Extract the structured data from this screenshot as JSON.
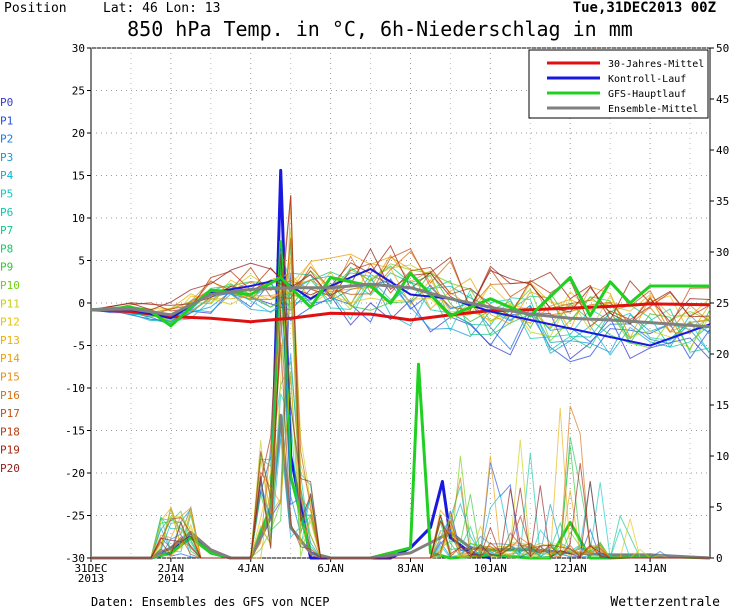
{
  "header": {
    "position_label": "Position",
    "lat_lon": "Lat: 46 Lon: 13",
    "run": "Tue,31DEC2013 00Z",
    "title": "850 hPa Temp. in °C, 6h-Niederschlag in mm"
  },
  "footer": {
    "source": "Daten: Ensembles des GFS von NCEP",
    "brand": "Wetterzentrale"
  },
  "members": [
    {
      "label": "P0",
      "color": "#3a3ad0"
    },
    {
      "label": "P1",
      "color": "#2250e0"
    },
    {
      "label": "P2",
      "color": "#1a7ae0"
    },
    {
      "label": "P3",
      "color": "#1898d8"
    },
    {
      "label": "P4",
      "color": "#10b0d0"
    },
    {
      "label": "P5",
      "color": "#10c8c8"
    },
    {
      "label": "P6",
      "color": "#10c8a8"
    },
    {
      "label": "P7",
      "color": "#10c888"
    },
    {
      "label": "P8",
      "color": "#18c860"
    },
    {
      "label": "P9",
      "color": "#30c830"
    },
    {
      "label": "P10",
      "color": "#70d010"
    },
    {
      "label": "P11",
      "color": "#c8d010"
    },
    {
      "label": "P12",
      "color": "#e8c010"
    },
    {
      "label": "P13",
      "color": "#e8b010"
    },
    {
      "label": "P14",
      "color": "#e8a010"
    },
    {
      "label": "P15",
      "color": "#e89010"
    },
    {
      "label": "P16",
      "color": "#d87010"
    },
    {
      "label": "P17",
      "color": "#c85010"
    },
    {
      "label": "P18",
      "color": "#b83a10"
    },
    {
      "label": "P19",
      "color": "#a02810"
    },
    {
      "label": "P20",
      "color": "#902020"
    }
  ],
  "chart_data": {
    "type": "line",
    "title": "850 hPa Temp. in °C, 6h-Niederschlag in mm",
    "x_ticks": [
      "31DEC\n2013",
      "2JAN\n2014",
      "4JAN",
      "6JAN",
      "8JAN",
      "10JAN",
      "12JAN",
      "14JAN"
    ],
    "x_range_days": [
      0,
      15.5
    ],
    "y_left_label": "°C",
    "y_left_range": [
      -30,
      30
    ],
    "y_left_ticks": [
      30,
      25,
      20,
      15,
      10,
      5,
      0,
      -5,
      -10,
      -15,
      -20,
      -25,
      -30
    ],
    "y_right_label": "mm",
    "y_right_range": [
      0,
      50
    ],
    "y_right_ticks": [
      50,
      45,
      40,
      35,
      30,
      25,
      20,
      15,
      10,
      5,
      0
    ],
    "grid": true,
    "legend_position": "top-right",
    "legend": [
      {
        "name": "30-Jahres-Mittel",
        "color": "#e01010"
      },
      {
        "name": "Kontroll-Lauf",
        "color": "#1818e0"
      },
      {
        "name": "GFS-Hauptlauf",
        "color": "#20d020"
      },
      {
        "name": "Ensemble-Mittel",
        "color": "#808080"
      }
    ],
    "temperature_series": [
      {
        "name": "30-Jahres-Mittel",
        "color": "#e01010",
        "width": 3,
        "x": [
          0,
          1,
          2,
          3,
          4,
          5,
          6,
          7,
          8,
          9,
          10,
          11,
          12,
          13,
          14,
          15.5
        ],
        "y": [
          -0.8,
          -1,
          -1.6,
          -1.8,
          -2.2,
          -1.8,
          -1.2,
          -1.3,
          -2,
          -1.4,
          -0.9,
          -0.8,
          -0.6,
          -0.4,
          -0.1,
          -0.2
        ]
      },
      {
        "name": "Kontroll-Lauf",
        "color": "#1818e0",
        "width": 2,
        "x": [
          0,
          1,
          2,
          3,
          4,
          4.75,
          5.5,
          6,
          7,
          8,
          9,
          10,
          11,
          12,
          13,
          14,
          15.5
        ],
        "y": [
          -0.8,
          -0.8,
          -1.8,
          1.2,
          2,
          2.8,
          0.5,
          2,
          4,
          1,
          0.5,
          -1,
          -2,
          -3,
          -4,
          -5,
          -2.5
        ]
      },
      {
        "name": "GFS-Hauptlauf",
        "color": "#20d020",
        "width": 3,
        "x": [
          0,
          1,
          1.5,
          2,
          2.5,
          3,
          4,
          4.75,
          5.5,
          6,
          7,
          7.5,
          8,
          9,
          10,
          11,
          12,
          12.5,
          13,
          13.5,
          14,
          15.5
        ],
        "y": [
          -0.8,
          -0.5,
          -1,
          -2.7,
          -0.5,
          1.5,
          1,
          3,
          -0.5,
          3,
          2,
          0,
          3.5,
          -1.5,
          0.5,
          -1.5,
          3,
          -1.5,
          2.5,
          0,
          2,
          2
        ]
      },
      {
        "name": "Ensemble-Mittel",
        "color": "#808080",
        "width": 3,
        "x": [
          0,
          1,
          2,
          3,
          4,
          5,
          6,
          7,
          8,
          9,
          10,
          11,
          12,
          13,
          14,
          15.5
        ],
        "y": [
          -0.8,
          -0.7,
          -1.4,
          1,
          1.6,
          1.8,
          1.8,
          2.2,
          1.8,
          0.5,
          -0.5,
          -1.3,
          -1.8,
          -2,
          -2.3,
          -2.8
        ]
      }
    ],
    "precip_series": [
      {
        "name": "Kontroll-Lauf",
        "color": "#1818e0",
        "x": [
          1.5,
          2,
          2.5,
          3,
          3.5,
          4,
          4.5,
          4.75,
          5,
          5.5,
          6,
          7,
          7.5,
          8,
          8.5,
          8.8,
          9,
          9.5,
          10
        ],
        "y": [
          0,
          0.5,
          2.5,
          0.5,
          0,
          0,
          4,
          38,
          10,
          0,
          0,
          0,
          0,
          1,
          3,
          7.5,
          2,
          0.5,
          0
        ]
      },
      {
        "name": "GFS-Hauptlauf",
        "color": "#20d020",
        "x": [
          0,
          1,
          1.5,
          2,
          2.5,
          3,
          3.5,
          4,
          4.5,
          4.75,
          5,
          5.5,
          6,
          7,
          7.5,
          8,
          8.2,
          8.5,
          9,
          10,
          11,
          11.5,
          12,
          12.5,
          13,
          14,
          15.5
        ],
        "y": [
          0,
          0,
          0,
          0.5,
          2,
          0.5,
          0,
          0,
          5,
          31,
          8,
          0.5,
          0,
          0,
          0.5,
          1,
          19,
          0.5,
          0,
          0.3,
          0,
          0,
          3.5,
          0,
          0,
          0.2,
          0
        ]
      },
      {
        "name": "Ensemble-Mittel",
        "color": "#808080",
        "x": [
          0,
          1,
          1.5,
          2,
          2.5,
          3,
          3.5,
          4,
          4.5,
          4.75,
          5,
          5.5,
          6,
          7,
          8,
          8.5,
          9,
          9.5,
          10,
          11,
          12,
          13,
          14,
          15.5
        ],
        "y": [
          0,
          0,
          0,
          1,
          2.5,
          0.8,
          0,
          0,
          4,
          14,
          3,
          0.5,
          0,
          0,
          0.5,
          1.5,
          2.5,
          1,
          0.8,
          0.8,
          0.5,
          0.3,
          0.3,
          0
        ]
      }
    ]
  }
}
